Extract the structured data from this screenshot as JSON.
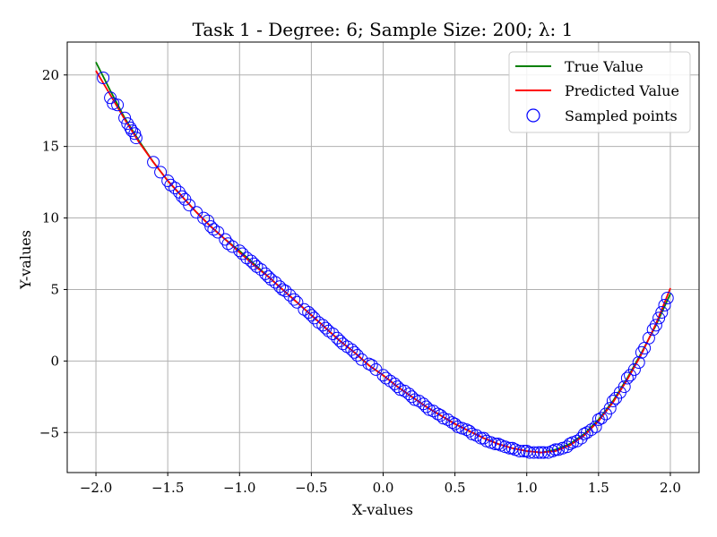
{
  "chart_data": {
    "type": "scatter",
    "title": "Task 1 - Degree: 6; Sample Size: 200; λ: 1",
    "xlabel": "X-values",
    "ylabel": "Y-values",
    "xlim": [
      -2.2,
      2.2
    ],
    "ylim": [
      -7.8,
      22.3
    ],
    "x_ticks": [
      -2.0,
      -1.5,
      -1.0,
      -0.5,
      0.0,
      0.5,
      1.0,
      1.5,
      2.0
    ],
    "x_tick_labels": [
      "−2.0",
      "−1.5",
      "−1.0",
      "−0.5",
      "0.0",
      "0.5",
      "1.0",
      "1.5",
      "2.0"
    ],
    "y_ticks": [
      -5,
      0,
      5,
      10,
      15,
      20
    ],
    "y_tick_labels": [
      "−5",
      "0",
      "5",
      "10",
      "15",
      "20"
    ],
    "grid": true,
    "legend_position": "top-right",
    "series": [
      {
        "name": "True Value",
        "kind": "line",
        "color": "#008000",
        "x": [
          -2.0,
          -1.9,
          -1.8,
          -1.7,
          -1.6,
          -1.5,
          -1.4,
          -1.3,
          -1.2,
          -1.1,
          -1.0,
          -0.9,
          -0.8,
          -0.7,
          -0.6,
          -0.5,
          -0.4,
          -0.3,
          -0.2,
          -0.1,
          0.0,
          0.1,
          0.2,
          0.3,
          0.4,
          0.5,
          0.6,
          0.7,
          0.8,
          0.9,
          1.0,
          1.1,
          1.2,
          1.3,
          1.4,
          1.5,
          1.6,
          1.7,
          1.8,
          1.9,
          2.0
        ],
        "y": [
          20.9,
          18.9,
          17.0,
          15.4,
          13.9,
          12.6,
          11.5,
          10.4,
          9.4,
          8.5,
          7.7,
          6.8,
          5.9,
          5.0,
          4.1,
          3.2,
          2.3,
          1.4,
          0.6,
          -0.3,
          -1.0,
          -1.8,
          -2.5,
          -3.2,
          -3.8,
          -4.4,
          -4.9,
          -5.4,
          -5.8,
          -6.1,
          -6.3,
          -6.4,
          -6.2,
          -5.8,
          -5.1,
          -4.1,
          -2.8,
          -1.2,
          0.6,
          2.5,
          4.7
        ]
      },
      {
        "name": "Predicted Value",
        "kind": "line",
        "color": "#ff0000",
        "x": [
          -2.0,
          -1.9,
          -1.8,
          -1.7,
          -1.6,
          -1.5,
          -1.4,
          -1.3,
          -1.2,
          -1.1,
          -1.0,
          -0.9,
          -0.8,
          -0.7,
          -0.6,
          -0.5,
          -0.4,
          -0.3,
          -0.2,
          -0.1,
          0.0,
          0.1,
          0.2,
          0.3,
          0.4,
          0.5,
          0.6,
          0.7,
          0.8,
          0.9,
          1.0,
          1.1,
          1.2,
          1.3,
          1.4,
          1.5,
          1.6,
          1.7,
          1.8,
          1.9,
          2.0
        ],
        "y": [
          20.3,
          18.6,
          16.9,
          15.3,
          13.9,
          12.6,
          11.5,
          10.4,
          9.4,
          8.5,
          7.6,
          6.7,
          5.9,
          5.0,
          4.1,
          3.2,
          2.3,
          1.4,
          0.6,
          -0.3,
          -1.0,
          -1.8,
          -2.5,
          -3.2,
          -3.8,
          -4.4,
          -4.9,
          -5.4,
          -5.8,
          -6.1,
          -6.3,
          -6.4,
          -6.3,
          -5.9,
          -5.2,
          -4.2,
          -2.9,
          -1.3,
          0.5,
          2.6,
          5.1
        ]
      },
      {
        "name": "Sampled points",
        "kind": "scatter",
        "color": "#0000ff",
        "x": [
          -1.95,
          -1.9,
          -1.88,
          -1.85,
          -1.8,
          -1.78,
          -1.76,
          -1.75,
          -1.73,
          -1.72,
          -1.6,
          -1.55,
          -1.5,
          -1.48,
          -1.45,
          -1.42,
          -1.4,
          -1.38,
          -1.35,
          -1.3,
          -1.25,
          -1.22,
          -1.2,
          -1.18,
          -1.15,
          -1.1,
          -1.08,
          -1.05,
          -1.0,
          -0.98,
          -0.95,
          -0.92,
          -0.9,
          -0.88,
          -0.85,
          -0.82,
          -0.8,
          -0.78,
          -0.75,
          -0.72,
          -0.7,
          -0.68,
          -0.65,
          -0.62,
          -0.6,
          -0.55,
          -0.52,
          -0.5,
          -0.48,
          -0.45,
          -0.42,
          -0.4,
          -0.38,
          -0.35,
          -0.32,
          -0.3,
          -0.28,
          -0.25,
          -0.22,
          -0.2,
          -0.18,
          -0.15,
          -0.1,
          -0.08,
          -0.05,
          0.0,
          0.02,
          0.05,
          0.08,
          0.1,
          0.12,
          0.15,
          0.18,
          0.2,
          0.22,
          0.25,
          0.28,
          0.3,
          0.32,
          0.35,
          0.38,
          0.4,
          0.42,
          0.45,
          0.48,
          0.5,
          0.52,
          0.55,
          0.58,
          0.6,
          0.62,
          0.65,
          0.68,
          0.7,
          0.72,
          0.75,
          0.78,
          0.8,
          0.82,
          0.85,
          0.88,
          0.9,
          0.92,
          0.95,
          0.98,
          1.0,
          1.02,
          1.05,
          1.08,
          1.1,
          1.12,
          1.15,
          1.18,
          1.2,
          1.22,
          1.25,
          1.28,
          1.3,
          1.32,
          1.35,
          1.38,
          1.4,
          1.42,
          1.45,
          1.48,
          1.5,
          1.52,
          1.55,
          1.58,
          1.6,
          1.62,
          1.65,
          1.68,
          1.7,
          1.72,
          1.75,
          1.78,
          1.8,
          1.82,
          1.85,
          1.88,
          1.9,
          1.92,
          1.94,
          1.96,
          1.98
        ],
        "y": [
          19.8,
          18.4,
          18.0,
          17.9,
          17.0,
          16.6,
          16.3,
          16.1,
          15.9,
          15.6,
          13.9,
          13.2,
          12.6,
          12.3,
          12.1,
          11.8,
          11.5,
          11.3,
          10.9,
          10.4,
          10.0,
          9.8,
          9.4,
          9.2,
          9.0,
          8.5,
          8.2,
          8.0,
          7.7,
          7.5,
          7.2,
          7.0,
          6.8,
          6.6,
          6.4,
          6.1,
          5.9,
          5.7,
          5.5,
          5.2,
          5.0,
          4.9,
          4.6,
          4.3,
          4.1,
          3.6,
          3.4,
          3.2,
          3.0,
          2.7,
          2.5,
          2.3,
          2.1,
          1.9,
          1.6,
          1.4,
          1.2,
          1.0,
          0.8,
          0.6,
          0.4,
          0.1,
          -0.2,
          -0.3,
          -0.6,
          -1.0,
          -1.2,
          -1.4,
          -1.6,
          -1.8,
          -2.0,
          -2.1,
          -2.3,
          -2.5,
          -2.7,
          -2.8,
          -3.0,
          -3.2,
          -3.4,
          -3.5,
          -3.7,
          -3.8,
          -4.0,
          -4.1,
          -4.3,
          -4.4,
          -4.6,
          -4.7,
          -4.8,
          -4.9,
          -5.1,
          -5.2,
          -5.4,
          -5.4,
          -5.6,
          -5.7,
          -5.8,
          -5.8,
          -5.9,
          -6.0,
          -6.1,
          -6.1,
          -6.2,
          -6.3,
          -6.3,
          -6.3,
          -6.4,
          -6.4,
          -6.4,
          -6.4,
          -6.4,
          -6.4,
          -6.3,
          -6.2,
          -6.2,
          -6.1,
          -6.0,
          -5.8,
          -5.7,
          -5.6,
          -5.4,
          -5.1,
          -5.0,
          -4.8,
          -4.6,
          -4.1,
          -4.0,
          -3.7,
          -3.3,
          -2.8,
          -2.6,
          -2.2,
          -1.8,
          -1.2,
          -1.0,
          -0.6,
          -0.1,
          0.6,
          0.9,
          1.6,
          2.2,
          2.5,
          3.0,
          3.4,
          3.9,
          4.4
        ]
      }
    ]
  }
}
